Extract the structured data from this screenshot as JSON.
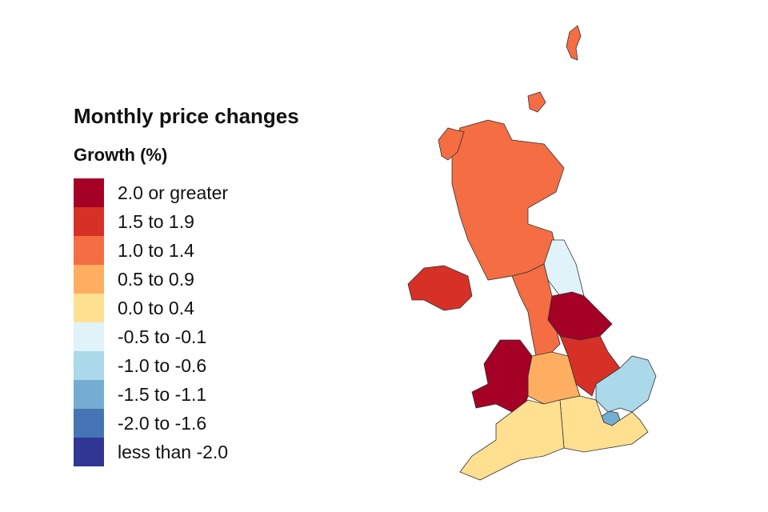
{
  "title": "Monthly price changes",
  "subtitle": "Growth (%)",
  "legend": [
    {
      "label": "2.0 or greater",
      "color": "#a50026"
    },
    {
      "label": "1.5 to 1.9",
      "color": "#d73027"
    },
    {
      "label": "1.0 to 1.4",
      "color": "#f46d43"
    },
    {
      "label": "0.5 to 0.9",
      "color": "#fdae61"
    },
    {
      "label": "0.0 to 0.4",
      "color": "#fee090"
    },
    {
      "label": "-0.5 to -0.1",
      "color": "#e0f3f8"
    },
    {
      "label": "-1.0 to -0.6",
      "color": "#abd9e9"
    },
    {
      "label": "-1.5 to -1.1",
      "color": "#74add1"
    },
    {
      "label": "-2.0 to -1.6",
      "color": "#4575b4"
    },
    {
      "label": "less than -2.0",
      "color": "#313695"
    }
  ],
  "regions": [
    {
      "key": "scotland",
      "class": 2
    },
    {
      "key": "northern-ireland",
      "class": 1
    },
    {
      "key": "north-east",
      "class": 5
    },
    {
      "key": "north-west",
      "class": 2
    },
    {
      "key": "yorkshire",
      "class": 0
    },
    {
      "key": "east-midlands",
      "class": 1
    },
    {
      "key": "west-midlands",
      "class": 3
    },
    {
      "key": "wales",
      "class": 0
    },
    {
      "key": "east",
      "class": 6
    },
    {
      "key": "london",
      "class": 7
    },
    {
      "key": "south-east",
      "class": 4
    },
    {
      "key": "south-west",
      "class": 4
    }
  ]
}
